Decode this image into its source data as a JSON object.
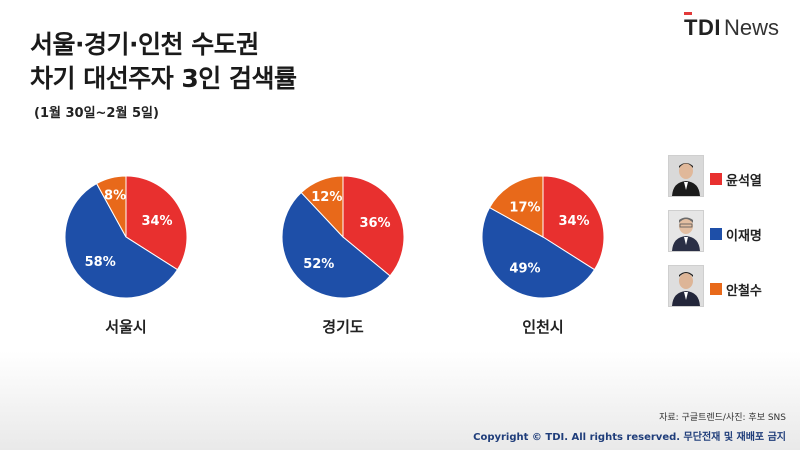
{
  "header": {
    "title_line1": "서울·경기·인천 수도권",
    "title_line2": "차기 대선주자 3인 검색률",
    "subtitle": "(1월 30일~2월 5일)",
    "logo_tdi": "TDI",
    "logo_news": "News"
  },
  "colors": {
    "yoon": "#e8302f",
    "lee": "#1e4fa8",
    "ahn": "#e8691a"
  },
  "legend": [
    {
      "name": "윤석열",
      "color": "#e8302f"
    },
    {
      "name": "이재명",
      "color": "#1e4fa8"
    },
    {
      "name": "안철수",
      "color": "#e8691a"
    }
  ],
  "chart_data": [
    {
      "type": "pie",
      "title": "서울시",
      "categories": [
        "윤석열",
        "이재명",
        "안철수"
      ],
      "values": [
        34,
        58,
        8
      ],
      "labels": [
        "34%",
        "58%",
        "8%"
      ]
    },
    {
      "type": "pie",
      "title": "경기도",
      "categories": [
        "윤석열",
        "이재명",
        "안철수"
      ],
      "values": [
        36,
        52,
        12
      ],
      "labels": [
        "36%",
        "52%",
        "12%"
      ]
    },
    {
      "type": "pie",
      "title": "인천시",
      "categories": [
        "윤석열",
        "이재명",
        "안철수"
      ],
      "values": [
        34,
        49,
        17
      ],
      "labels": [
        "34%",
        "49%",
        "17%"
      ]
    }
  ],
  "footer": {
    "source": "자료: 구글트렌드/사진: 후보 SNS",
    "copyright": "Copyright © TDI. All rights reserved. 무단전재 및 재배포 금지"
  }
}
